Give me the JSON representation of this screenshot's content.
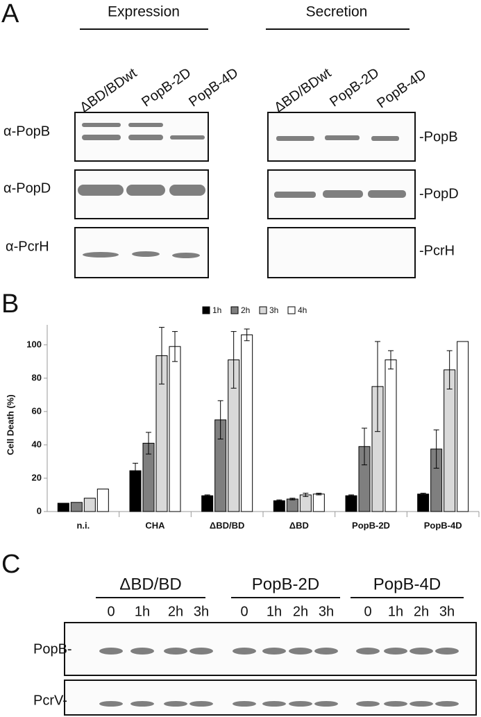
{
  "panel_a": {
    "letter": "A",
    "groups": [
      "Expression",
      "Secretion"
    ],
    "lanes": [
      "ΔBD/BDwt",
      "PopB-2D",
      "PopB-4D"
    ],
    "left_labels": [
      "α-PopB",
      "α-PopD",
      "α-PcrH"
    ],
    "right_labels": [
      "-PopB",
      "-PopD",
      "-PcrH"
    ]
  },
  "chart_data": {
    "type": "bar",
    "letter": "B",
    "y_label": "Cell Death (%)",
    "categories": [
      "n.i.",
      "CHA",
      "ΔBD/BD",
      "ΔBD",
      "PopB-2D",
      "PopB-4D"
    ],
    "series": [
      {
        "name": "1h",
        "color": "#000000",
        "values": [
          5,
          24.5,
          9.5,
          6.5,
          9.5,
          10.5
        ],
        "errors": [
          null,
          4.5,
          0.5,
          0.5,
          0.5,
          0.5
        ]
      },
      {
        "name": "2h",
        "color": "#7f7f7f",
        "values": [
          5.5,
          41,
          55,
          7.5,
          39,
          37.5
        ],
        "errors": [
          null,
          6.5,
          11.5,
          0.5,
          11,
          11.5
        ]
      },
      {
        "name": "3h",
        "color": "#d9d9d9",
        "values": [
          8,
          93.5,
          91,
          10,
          75,
          85
        ],
        "errors": [
          null,
          17,
          17,
          1,
          27,
          11.5
        ]
      },
      {
        "name": "4h",
        "color": "#ffffff",
        "values": [
          13.5,
          99,
          106,
          10.5,
          91,
          102
        ],
        "errors": [
          null,
          9,
          3.5,
          0.5,
          5.5,
          null
        ]
      }
    ],
    "ylim": [
      0,
      112
    ],
    "yticks": [
      0,
      20,
      40,
      60,
      80,
      100
    ],
    "legend": "top"
  },
  "panel_c": {
    "letter": "C",
    "groups": [
      "ΔBD/BD",
      "PopB-2D",
      "PopB-4D"
    ],
    "times": [
      "0",
      "1h",
      "2h",
      "3h"
    ],
    "row_labels": [
      "PopB-",
      "PcrV-"
    ]
  }
}
